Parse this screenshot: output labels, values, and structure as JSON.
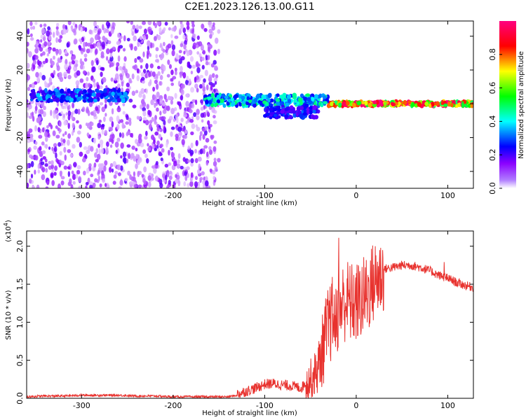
{
  "title": "C2E1.2023.126.13.00.G11",
  "chart_data": [
    {
      "type": "heatmap",
      "xlabel": "Height of straight line (km)",
      "ylabel": "Frequency (Hz)",
      "xlim": [
        -360,
        128
      ],
      "ylim": [
        -50,
        49
      ],
      "xticks": [
        -300,
        -200,
        -100,
        0,
        100
      ],
      "yticks": [
        -40,
        -20,
        0,
        20,
        40
      ],
      "colorbar": {
        "label": "Normalized spectral amplitude",
        "range": [
          0.0,
          1.0
        ],
        "ticks": [
          "0.0",
          "0.2",
          "0.4",
          "0.6",
          "0.8"
        ],
        "tick_values": [
          0.0,
          0.2,
          0.4,
          0.6,
          0.8
        ],
        "colors": [
          "#ffffff",
          "#8a00ff",
          "#0000ff",
          "#00ffff",
          "#00ff00",
          "#ffff00",
          "#ff0000",
          "#ff0080"
        ]
      },
      "features": [
        {
          "x_range": [
            -360,
            -150
          ],
          "freq_range": [
            -50,
            49
          ],
          "amplitude": 0.15
        },
        {
          "x_range": [
            -355,
            -250
          ],
          "freq_center": 5,
          "amplitude": 0.35
        },
        {
          "x_range": [
            -165,
            -30
          ],
          "freq_center": 2,
          "amplitude": 0.45
        },
        {
          "x_range": [
            -100,
            -40
          ],
          "freq_center": -5,
          "amplitude": 0.3
        },
        {
          "x_range": [
            -30,
            128
          ],
          "freq_center": 0,
          "amplitude": 0.9
        }
      ]
    },
    {
      "type": "line",
      "xlabel": "Height of straight line (km)",
      "ylabel": "SNR (10 * v/v)",
      "scale_note": "(x10",
      "scale_exp": "4",
      "scale_close": ")",
      "xlim": [
        -360,
        128
      ],
      "ylim": [
        0.0,
        2.2
      ],
      "xticks": [
        -300,
        -200,
        -100,
        0,
        100
      ],
      "yticks": [
        "0.0",
        "0.5",
        "1.0",
        "1.5",
        "2.0"
      ],
      "ytick_values": [
        0.0,
        0.5,
        1.0,
        1.5,
        2.0
      ],
      "color": "#e8322e",
      "series": [
        {
          "x": [
            -360,
            -340,
            -320,
            -300,
            -280,
            -260,
            -240,
            -220,
            -200,
            -180,
            -160,
            -140,
            -130,
            -120,
            -110,
            -100,
            -90,
            -80,
            -70,
            -60,
            -55,
            -50,
            -45,
            -40,
            -35,
            -30,
            -25,
            -20,
            -15,
            -10,
            -5,
            0,
            5,
            10,
            15,
            20,
            25,
            30,
            40,
            50,
            60,
            70,
            80,
            90,
            100,
            110,
            120,
            128
          ],
          "y": [
            0.02,
            0.03,
            0.03,
            0.04,
            0.04,
            0.04,
            0.03,
            0.03,
            0.02,
            0.02,
            0.02,
            0.02,
            0.04,
            0.08,
            0.12,
            0.17,
            0.18,
            0.16,
            0.15,
            0.12,
            0.2,
            0.28,
            0.35,
            0.5,
            0.8,
            1.0,
            1.15,
            1.2,
            1.3,
            1.35,
            1.3,
            1.3,
            1.35,
            1.4,
            1.5,
            1.6,
            1.65,
            1.7,
            1.72,
            1.75,
            1.75,
            1.72,
            1.68,
            1.62,
            1.58,
            1.52,
            1.48,
            1.46
          ]
        }
      ]
    }
  ]
}
